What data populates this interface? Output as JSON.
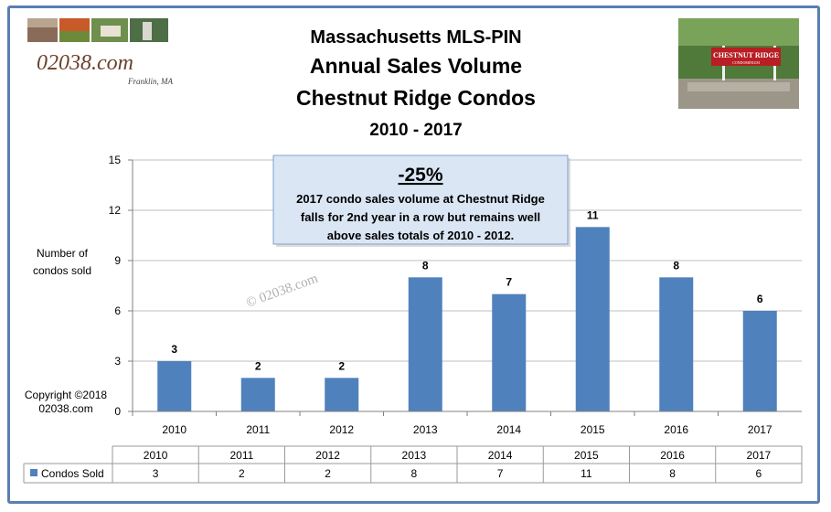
{
  "header": {
    "title_lines": [
      "Massachusetts MLS-PIN",
      "Annual Sales Volume",
      "Chestnut Ridge Condos"
    ],
    "subtitle": "2010 - 2017"
  },
  "logo": {
    "site": "02038.com",
    "town": "Franklin, MA"
  },
  "sign": {
    "line1": "CHESTNUT RIDGE",
    "line2": "CONDOMINIUM"
  },
  "callout": {
    "headline": "-25%",
    "lines": [
      "2017 condo sales volume at Chestnut Ridge",
      "falls for 2nd year in a row but  remains well",
      "above sales totals of 2010 - 2012."
    ]
  },
  "watermark": "© 02038.com",
  "y_axis_label_lines": [
    "Number  of",
    "condos sold"
  ],
  "copyright_lines": [
    "Copyright ©2018",
    "02038.com"
  ],
  "colors": {
    "bar": "#4f81bd",
    "frame": "#5a7fb0",
    "grid": "#bfbfbf",
    "callout_fill": "#dbe6f4",
    "callout_border": "#7ea1cf"
  },
  "chart_data": {
    "type": "bar",
    "categories": [
      "2010",
      "2011",
      "2012",
      "2013",
      "2014",
      "2015",
      "2016",
      "2017"
    ],
    "series": [
      {
        "name": "Condos Sold",
        "values": [
          3,
          2,
          2,
          8,
          7,
          11,
          8,
          6
        ]
      }
    ],
    "title": "Massachusetts MLS-PIN Annual Sales Volume Chestnut Ridge Condos",
    "subtitle": "2010 - 2017",
    "ylabel": "Number  of condos sold",
    "xlabel": "",
    "ylim": [
      0,
      15
    ],
    "yticks": [
      0,
      3,
      6,
      9,
      12,
      15
    ],
    "grid": true,
    "data_table": true,
    "legend": "data-table"
  }
}
